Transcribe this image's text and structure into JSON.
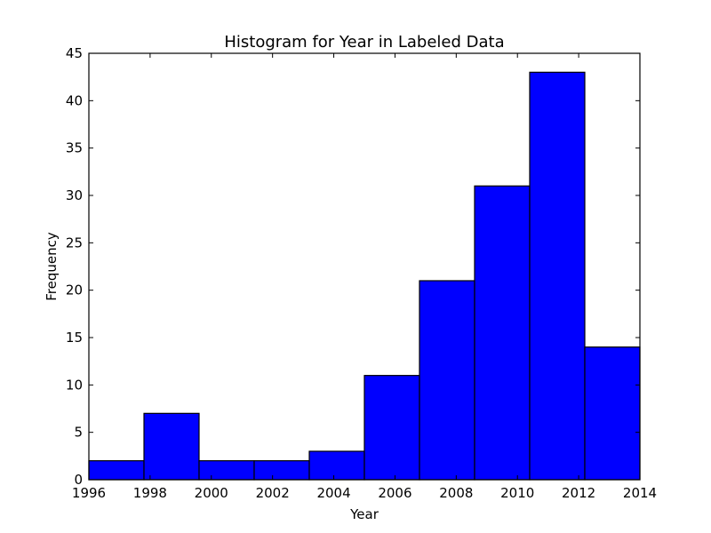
{
  "chart_data": {
    "type": "bar",
    "title": "Histogram for Year in Labeled Data",
    "xlabel": "Year",
    "ylabel": "Frequency",
    "xlim": [
      1996,
      2014
    ],
    "ylim": [
      0,
      45
    ],
    "xticks": [
      1996,
      1998,
      2000,
      2002,
      2004,
      2006,
      2008,
      2010,
      2012,
      2014
    ],
    "yticks": [
      0,
      5,
      10,
      15,
      20,
      25,
      30,
      35,
      40,
      45
    ],
    "bins": [
      {
        "start": 1996.0,
        "end": 1997.8,
        "value": 2
      },
      {
        "start": 1997.8,
        "end": 1999.6,
        "value": 7
      },
      {
        "start": 1999.6,
        "end": 2001.4,
        "value": 2
      },
      {
        "start": 2001.4,
        "end": 2003.2,
        "value": 2
      },
      {
        "start": 2003.2,
        "end": 2005.0,
        "value": 3
      },
      {
        "start": 2005.0,
        "end": 2006.8,
        "value": 11
      },
      {
        "start": 2006.8,
        "end": 2008.6,
        "value": 21
      },
      {
        "start": 2008.6,
        "end": 2010.4,
        "value": 31
      },
      {
        "start": 2010.4,
        "end": 2012.2,
        "value": 43
      },
      {
        "start": 2012.2,
        "end": 2014.0,
        "value": 14
      }
    ],
    "bar_color": "#0000ff",
    "grid": false,
    "legend": "none"
  }
}
